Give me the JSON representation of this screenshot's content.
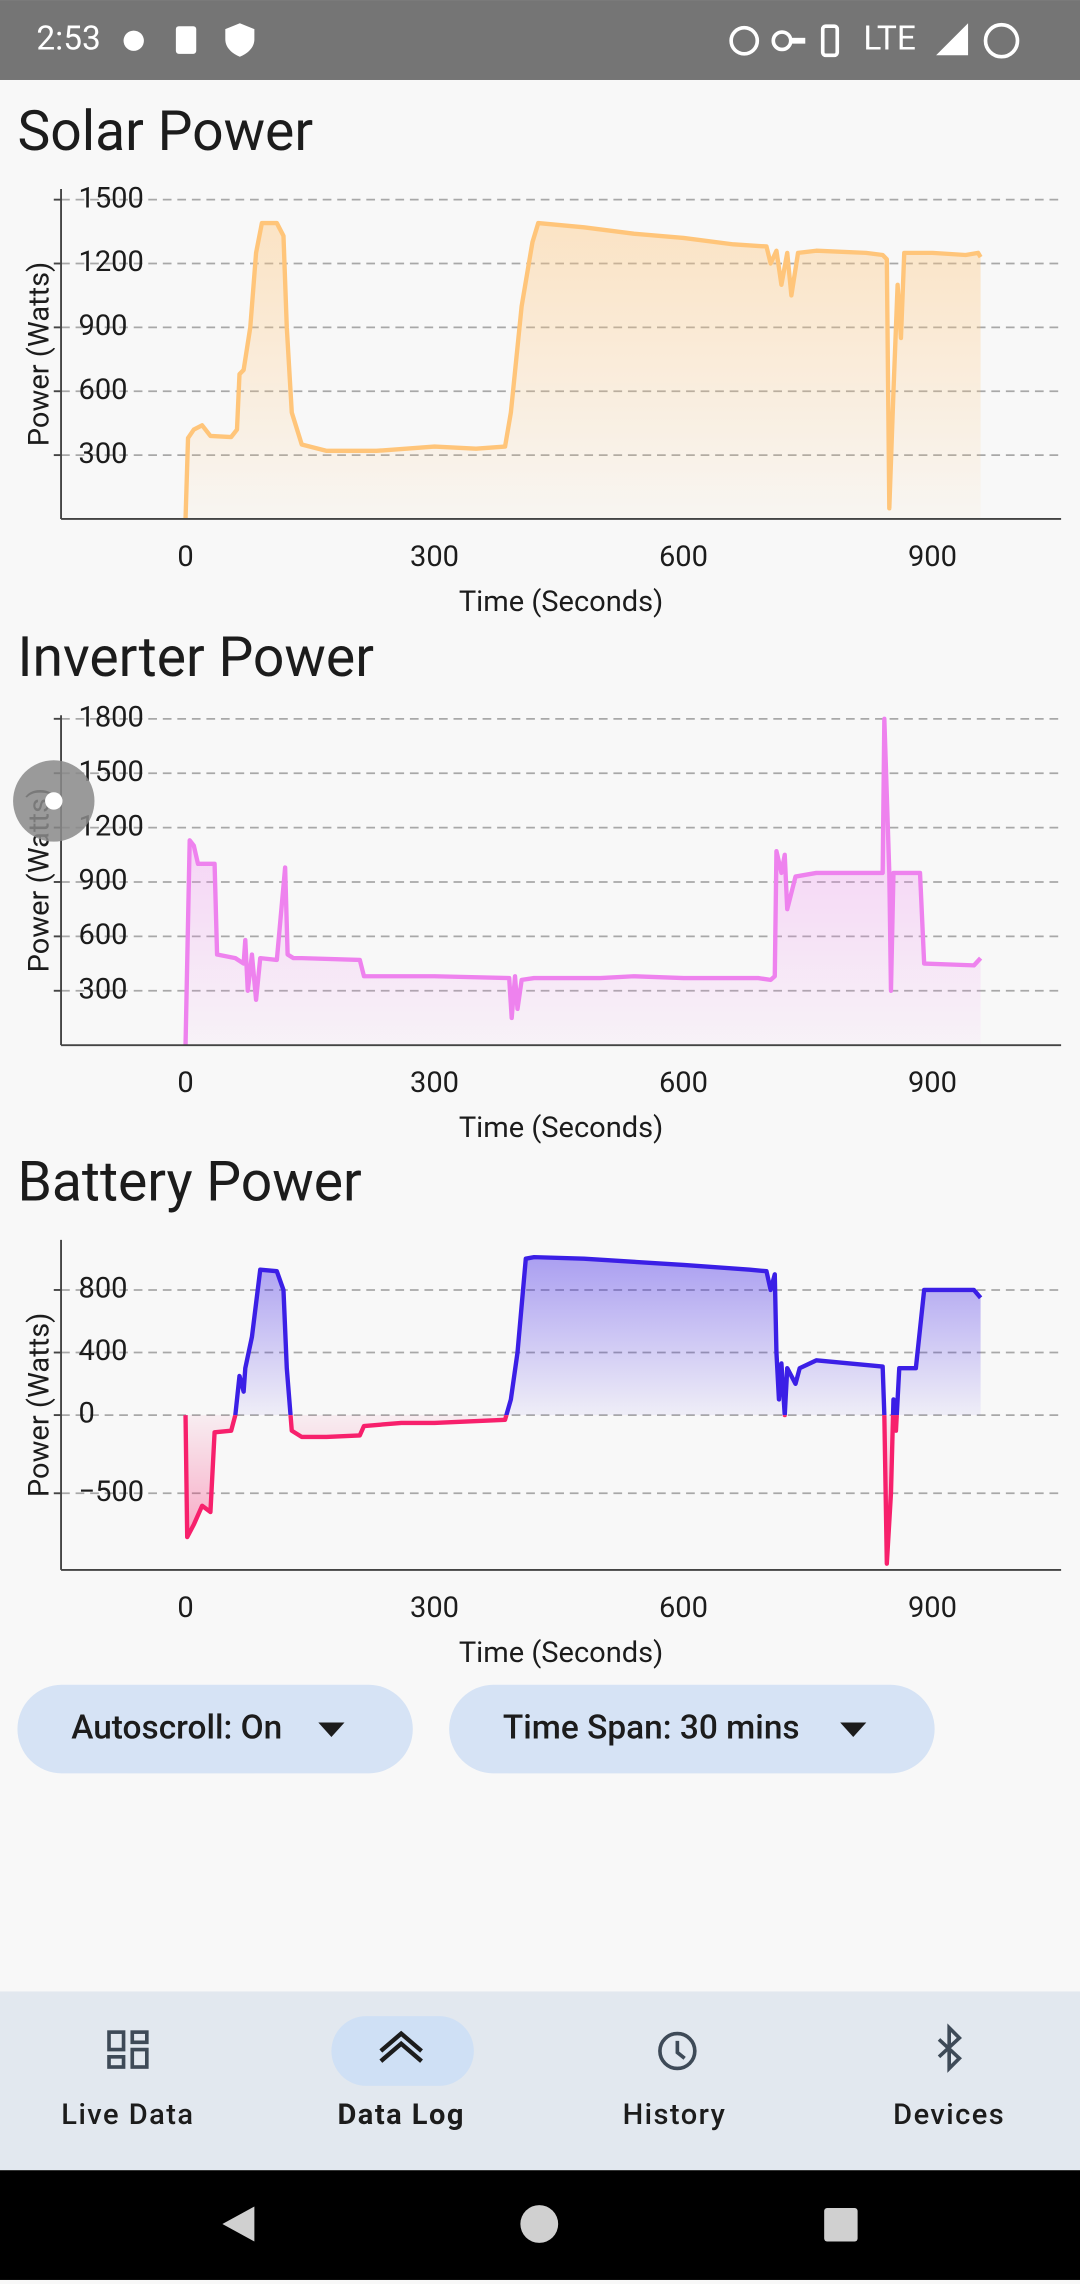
{
  "status_bar": {
    "time": "2:53",
    "network": "LTE"
  },
  "chart_data": [
    {
      "type": "line",
      "title": "Solar Power",
      "x_label": "Time (Seconds)",
      "y_label": "Power (Watts)",
      "x": [
        0,
        3,
        10,
        20,
        30,
        55,
        62,
        65,
        70,
        78,
        85,
        92,
        110,
        118,
        122,
        128,
        140,
        170,
        230,
        300,
        350,
        385,
        392,
        405,
        418,
        425,
        480,
        540,
        600,
        660,
        700,
        705,
        712,
        718,
        725,
        730,
        738,
        760,
        820,
        840,
        845,
        848,
        853,
        858,
        862,
        866,
        900,
        940,
        955,
        958
      ],
      "series": [
        {
          "color": "#ffc57a",
          "values": [
            0,
            380,
            420,
            440,
            390,
            385,
            420,
            680,
            700,
            900,
            1250,
            1390,
            1390,
            1330,
            900,
            500,
            350,
            320,
            320,
            340,
            330,
            340,
            500,
            1000,
            1300,
            1390,
            1370,
            1340,
            1320,
            1290,
            1280,
            1200,
            1260,
            1100,
            1250,
            1050,
            1250,
            1260,
            1250,
            1240,
            1220,
            50,
            600,
            1100,
            850,
            1250,
            1250,
            1240,
            1250,
            1230
          ]
        }
      ],
      "xlim": [
        -150,
        1055
      ],
      "ylim": [
        0,
        1550
      ],
      "xticks": [
        0,
        300,
        600,
        900
      ],
      "yticks": [
        300,
        600,
        900,
        1200,
        1500
      ],
      "grid": true
    },
    {
      "type": "line",
      "title": "Inverter Power",
      "x_label": "Time (Seconds)",
      "y_label": "Power (Watts)",
      "x": [
        0,
        5,
        10,
        15,
        35,
        38,
        60,
        70,
        72,
        75,
        80,
        85,
        90,
        110,
        120,
        123,
        130,
        140,
        210,
        215,
        300,
        390,
        393,
        397,
        400,
        405,
        420,
        500,
        540,
        600,
        690,
        705,
        710,
        712,
        718,
        722,
        725,
        735,
        760,
        840,
        842,
        848,
        850,
        853,
        860,
        870,
        885,
        890,
        950,
        958
      ],
      "series": [
        {
          "color": "#ee82ee",
          "values": [
            0,
            1130,
            1100,
            1000,
            1000,
            500,
            480,
            450,
            580,
            300,
            500,
            250,
            480,
            470,
            980,
            500,
            480,
            480,
            470,
            380,
            380,
            370,
            150,
            380,
            200,
            360,
            370,
            370,
            380,
            370,
            370,
            360,
            380,
            1070,
            950,
            1050,
            750,
            930,
            950,
            950,
            1800,
            950,
            300,
            950,
            950,
            950,
            950,
            450,
            440,
            480
          ]
        }
      ],
      "xlim": [
        -150,
        1055
      ],
      "ylim": [
        0,
        1820
      ],
      "xticks": [
        0,
        300,
        600,
        900
      ],
      "yticks": [
        300,
        600,
        900,
        1200,
        1500,
        1800
      ],
      "grid": true
    },
    {
      "type": "line",
      "title": "Battery Power",
      "x_label": "Time (Seconds)",
      "y_label": "Power (Watts)",
      "x": [
        0,
        2,
        10,
        20,
        30,
        35,
        55,
        60,
        65,
        70,
        72,
        80,
        90,
        110,
        118,
        122,
        128,
        140,
        170,
        210,
        215,
        260,
        300,
        385,
        392,
        400,
        410,
        420,
        480,
        540,
        600,
        680,
        700,
        705,
        710,
        712,
        715,
        718,
        722,
        725,
        735,
        740,
        760,
        800,
        840,
        842,
        845,
        850,
        853,
        856,
        860,
        880,
        890,
        950,
        958
      ],
      "series": [
        {
          "color": "#3b1fe6",
          "negative_color": "#f7206c",
          "values": [
            0,
            -780,
            -700,
            -580,
            -620,
            -110,
            -100,
            0,
            250,
            150,
            300,
            500,
            930,
            920,
            800,
            300,
            -100,
            -140,
            -140,
            -130,
            -70,
            -50,
            -50,
            -30,
            100,
            400,
            1000,
            1010,
            1000,
            980,
            960,
            930,
            920,
            800,
            900,
            400,
            100,
            330,
            0,
            300,
            200,
            300,
            350,
            330,
            310,
            0,
            -950,
            -500,
            100,
            -100,
            300,
            300,
            800,
            800,
            750
          ]
        }
      ],
      "xlim": [
        -150,
        1055
      ],
      "ylim": [
        -990,
        1120
      ],
      "xticks": [
        0,
        300,
        600,
        900
      ],
      "yticks": [
        {
          "value": -500,
          "label": "−500"
        },
        0,
        400,
        800
      ],
      "grid": true
    }
  ],
  "controls": {
    "autoscroll": "Autoscroll: On",
    "time_span": "Time Span: 30 mins"
  },
  "nav": {
    "items": [
      "Live Data",
      "Data Log",
      "History",
      "Devices"
    ]
  }
}
